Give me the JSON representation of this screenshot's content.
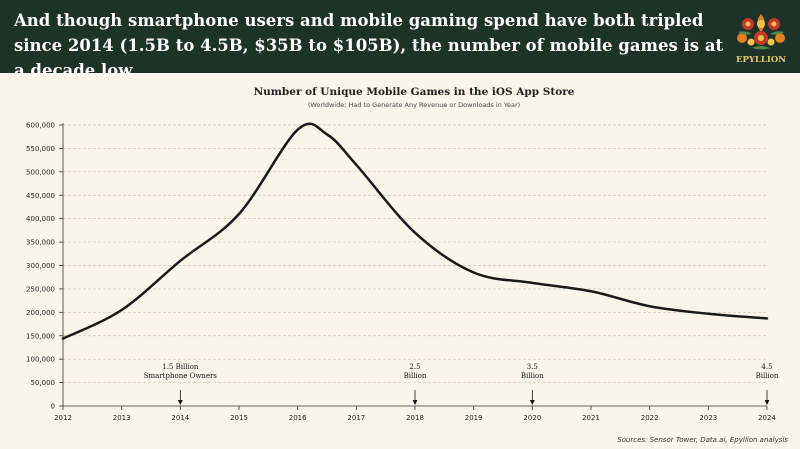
{
  "headline": "And though smartphone users and mobile gaming spend have both tripled since 2014 (1.5B to 4.5B, $35B to $105B), the number of mobile games is at a decade low",
  "brand": {
    "name": "EPYLLION"
  },
  "colors": {
    "banner": "#1d3228",
    "page": "#fbf5e9",
    "line": "#1a1a1a",
    "grid": "#c9c1b0"
  },
  "source": "Sources: Sensor Tower, Data.ai, Epyllion analysis",
  "chart_data": {
    "type": "line",
    "title": "Number of Unique Mobile Games in the iOS App Store",
    "subtitle": "(Worldwide; Had to Generate Any Revenue or Downloads in Year)",
    "xlabel": "",
    "ylabel": "",
    "x": [
      2012,
      2013,
      2014,
      2015,
      2016,
      2016.5,
      2017,
      2018,
      2019,
      2020,
      2021,
      2022,
      2023,
      2024
    ],
    "values": [
      144000,
      205000,
      310000,
      410000,
      590000,
      580000,
      515000,
      370000,
      285000,
      263000,
      245000,
      213000,
      197000,
      187000
    ],
    "xlim": [
      2012,
      2024
    ],
    "ylim": [
      0,
      600000
    ],
    "yticks": [
      "0",
      "50,000",
      "100,000",
      "150,000",
      "200,000",
      "250,000",
      "300,000",
      "350,000",
      "400,000",
      "450,000",
      "500,000",
      "550,000",
      "600,000"
    ],
    "xticks": [
      "2012",
      "2013",
      "2014",
      "2015",
      "2016",
      "2017",
      "2018",
      "2019",
      "2020",
      "2021",
      "2022",
      "2023",
      "2024"
    ],
    "grid": true,
    "annotations": [
      {
        "x": 2014,
        "lines": [
          "1.5 Billion",
          "Smartphone Owners"
        ]
      },
      {
        "x": 2018,
        "lines": [
          "2.5",
          "Billion"
        ]
      },
      {
        "x": 2020,
        "lines": [
          "3.5",
          "Billion"
        ]
      },
      {
        "x": 2024,
        "lines": [
          "4.5",
          "Billion"
        ]
      }
    ]
  }
}
